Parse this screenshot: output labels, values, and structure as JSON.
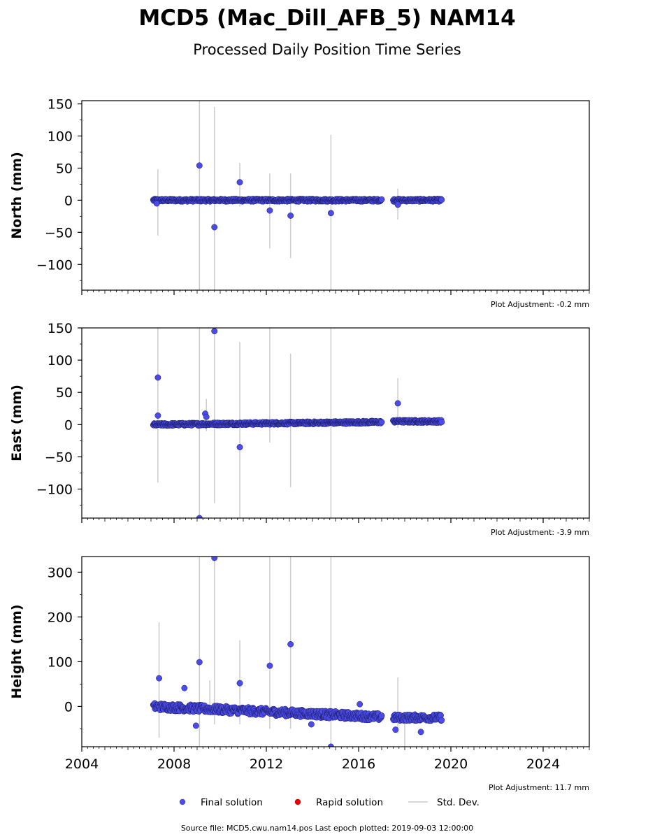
{
  "title": "MCD5 (Mac_Dill_AFB_5) NAM14",
  "subtitle": "Processed Daily Position Time Series",
  "legend": {
    "final": "Final solution",
    "rapid": "Rapid solution",
    "std": "Std. Dev."
  },
  "footer": "Source file: MCD5.cwu.nam14.pos  Last epoch plotted: 2019-09-03 12:00:00",
  "colors": {
    "final": "#4b4be8",
    "rapid": "#e00000",
    "std": "#cccccc"
  },
  "chart_data": [
    {
      "type": "scatter",
      "ylabel": "North (mm)",
      "adjustment": "Plot Adjustment: -0.2 mm",
      "xlim": [
        2004.0,
        2026.0
      ],
      "ylim": [
        -140,
        155
      ],
      "yticks": [
        150,
        100,
        50,
        0,
        -50,
        -100
      ],
      "segments": [
        {
          "start": 2007.1,
          "end": 2017.0,
          "center": 0,
          "amp": 2
        },
        {
          "start": 2017.5,
          "end": 2019.6,
          "center": 0,
          "amp": 2
        }
      ],
      "outliers": [
        {
          "x": 2009.1,
          "y": 54
        },
        {
          "x": 2009.75,
          "y": -42
        },
        {
          "x": 2010.85,
          "y": 28
        },
        {
          "x": 2012.15,
          "y": -16
        },
        {
          "x": 2013.05,
          "y": -24
        },
        {
          "x": 2014.8,
          "y": -20
        },
        {
          "x": 2007.25,
          "y": -5
        },
        {
          "x": 2017.7,
          "y": -7
        }
      ],
      "stddev": [
        {
          "x": 2007.3,
          "low": -55,
          "high": 48
        },
        {
          "x": 2009.1,
          "low": -140,
          "high": 155
        },
        {
          "x": 2009.75,
          "low": -140,
          "high": 145
        },
        {
          "x": 2010.85,
          "low": -10,
          "high": 58
        },
        {
          "x": 2012.15,
          "low": -75,
          "high": 42
        },
        {
          "x": 2013.05,
          "low": -90,
          "high": 42
        },
        {
          "x": 2014.8,
          "low": -140,
          "high": 102
        },
        {
          "x": 2017.7,
          "low": -30,
          "high": 18
        }
      ]
    },
    {
      "type": "scatter",
      "ylabel": "East (mm)",
      "adjustment": "Plot Adjustment: -3.9 mm",
      "xlim": [
        2004.0,
        2026.0
      ],
      "ylim": [
        -145,
        150
      ],
      "yticks": [
        150,
        100,
        50,
        0,
        -50,
        -100
      ],
      "segments": [
        {
          "start": 2007.1,
          "end": 2017.0,
          "center": 0,
          "amp": 2,
          "slope": 0.4
        },
        {
          "start": 2017.5,
          "end": 2019.6,
          "center": 5,
          "amp": 2,
          "slope": 0
        }
      ],
      "outliers": [
        {
          "x": 2007.3,
          "y": 73
        },
        {
          "x": 2007.3,
          "y": 14
        },
        {
          "x": 2009.1,
          "y": -145
        },
        {
          "x": 2009.35,
          "y": 17
        },
        {
          "x": 2009.4,
          "y": 12
        },
        {
          "x": 2009.75,
          "y": 145
        },
        {
          "x": 2010.85,
          "y": -35
        },
        {
          "x": 2017.7,
          "y": 33
        }
      ],
      "stddev": [
        {
          "x": 2007.3,
          "low": -90,
          "high": 150
        },
        {
          "x": 2009.1,
          "low": -145,
          "high": 150
        },
        {
          "x": 2009.4,
          "low": -10,
          "high": 40
        },
        {
          "x": 2009.75,
          "low": -122,
          "high": 150
        },
        {
          "x": 2010.85,
          "low": -145,
          "high": 128
        },
        {
          "x": 2012.15,
          "low": -28,
          "high": 150
        },
        {
          "x": 2013.05,
          "low": -97,
          "high": 110
        },
        {
          "x": 2014.8,
          "low": -145,
          "high": 150
        },
        {
          "x": 2017.7,
          "low": -5,
          "high": 72
        }
      ]
    },
    {
      "type": "scatter",
      "ylabel": "Height (mm)",
      "adjustment": "Plot Adjustment: 11.7 mm",
      "xlim": [
        2004.0,
        2026.0
      ],
      "ylim": [
        -90,
        335
      ],
      "yticks": [
        300,
        200,
        100,
        0
      ],
      "xticks": [
        2004,
        2008,
        2012,
        2016,
        2020,
        2024
      ],
      "segments": [
        {
          "start": 2007.1,
          "end": 2017.0,
          "center": 0,
          "amp": 8,
          "slope": -2.4
        },
        {
          "start": 2017.5,
          "end": 2019.6,
          "center": -25,
          "amp": 7,
          "slope": 0
        }
      ],
      "outliers": [
        {
          "x": 2007.35,
          "y": 63
        },
        {
          "x": 2008.45,
          "y": 41
        },
        {
          "x": 2008.95,
          "y": -43
        },
        {
          "x": 2009.1,
          "y": 99
        },
        {
          "x": 2009.75,
          "y": 332
        },
        {
          "x": 2010.85,
          "y": 52
        },
        {
          "x": 2012.15,
          "y": 91
        },
        {
          "x": 2013.05,
          "y": 139
        },
        {
          "x": 2013.95,
          "y": -40
        },
        {
          "x": 2014.8,
          "y": -90
        },
        {
          "x": 2016.05,
          "y": 5
        },
        {
          "x": 2017.6,
          "y": -52
        },
        {
          "x": 2018.7,
          "y": -57
        }
      ],
      "stddev": [
        {
          "x": 2007.35,
          "low": -70,
          "high": 188
        },
        {
          "x": 2009.1,
          "low": -90,
          "high": 335
        },
        {
          "x": 2009.55,
          "low": -10,
          "high": 58
        },
        {
          "x": 2009.75,
          "low": -40,
          "high": 335
        },
        {
          "x": 2010.85,
          "low": -40,
          "high": 148
        },
        {
          "x": 2012.15,
          "low": -50,
          "high": 335
        },
        {
          "x": 2013.05,
          "low": -50,
          "high": 335
        },
        {
          "x": 2014.8,
          "low": -90,
          "high": 335
        },
        {
          "x": 2017.7,
          "low": -60,
          "high": 65
        },
        {
          "x": 2018.0,
          "low": -90,
          "high": -20
        }
      ]
    }
  ]
}
